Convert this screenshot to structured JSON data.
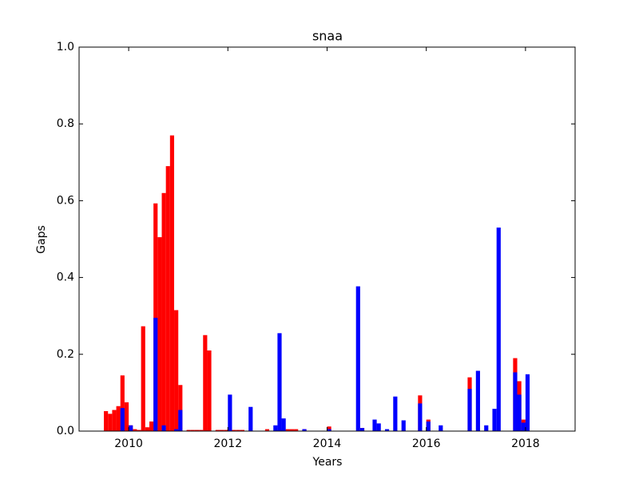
{
  "chart_data": {
    "type": "bar",
    "title": "snaa",
    "x_label": "Years",
    "y_label": "Gaps",
    "x": [
      2009.5,
      2009.583,
      2009.667,
      2009.75,
      2009.833,
      2009.917,
      2010.0,
      2010.083,
      2010.167,
      2010.25,
      2010.333,
      2010.417,
      2010.5,
      2010.583,
      2010.667,
      2010.75,
      2010.833,
      2010.917,
      2011.0,
      2011.167,
      2011.25,
      2011.333,
      2011.417,
      2011.5,
      2011.583,
      2011.75,
      2011.833,
      2011.917,
      2012.0,
      2012.083,
      2012.167,
      2012.25,
      2012.417,
      2012.75,
      2012.917,
      2013.0,
      2013.083,
      2013.167,
      2013.25,
      2013.333,
      2013.5,
      2014.0,
      2014.583,
      2014.667,
      2014.917,
      2015.0,
      2015.167,
      2015.333,
      2015.5,
      2015.833,
      2016.0,
      2016.25,
      2016.833,
      2017.0,
      2017.167,
      2017.333,
      2017.417,
      2017.75,
      2017.833,
      2017.917,
      2018.0
    ],
    "series": [
      {
        "color": "#ff0000",
        "values": [
          0.052,
          0.045,
          0.055,
          0.065,
          0.145,
          0.075,
          0.015,
          0.005,
          0.003,
          0.273,
          0.01,
          0.025,
          0.593,
          0.505,
          0.62,
          0.69,
          0.77,
          0.315,
          0.12,
          0.003,
          0.003,
          0.003,
          0.003,
          0.25,
          0.21,
          0.003,
          0.003,
          0.003,
          null,
          0.003,
          0.003,
          0.003,
          null,
          0.005,
          null,
          null,
          0.005,
          0.005,
          0.005,
          0.005,
          0.005,
          0.012,
          null,
          0.008,
          null,
          null,
          null,
          null,
          null,
          0.093,
          0.03,
          null,
          0.14,
          null,
          null,
          null,
          null,
          0.19,
          0.13,
          0.03,
          null
        ]
      },
      {
        "color": "#0000ff",
        "values": [
          null,
          null,
          null,
          null,
          0.06,
          null,
          0.015,
          null,
          null,
          null,
          null,
          null,
          0.295,
          null,
          0.015,
          null,
          null,
          0.005,
          0.055,
          null,
          null,
          null,
          null,
          null,
          null,
          null,
          null,
          null,
          0.095,
          null,
          null,
          null,
          0.063,
          null,
          0.015,
          0.255,
          0.033,
          null,
          null,
          null,
          0.005,
          0.005,
          0.377,
          0.008,
          0.03,
          0.02,
          0.005,
          0.09,
          0.028,
          0.072,
          0.025,
          0.015,
          0.11,
          0.157,
          0.015,
          0.058,
          0.53,
          0.153,
          0.095,
          0.022,
          0.148
        ]
      }
    ],
    "xlim": [
      2009,
      2019
    ],
    "xticks": [
      2010,
      2012,
      2014,
      2016,
      2018
    ],
    "ylim": [
      0,
      1
    ],
    "yticks": [
      {
        "value": 0,
        "label": "0.0"
      },
      {
        "value": 0.2,
        "label": "0.2"
      },
      {
        "value": 0.4,
        "label": "0.4"
      },
      {
        "value": 0.6,
        "label": "0.6"
      },
      {
        "value": 0.8,
        "label": "0.8"
      },
      {
        "value": 1,
        "label": "1.0"
      }
    ]
  }
}
